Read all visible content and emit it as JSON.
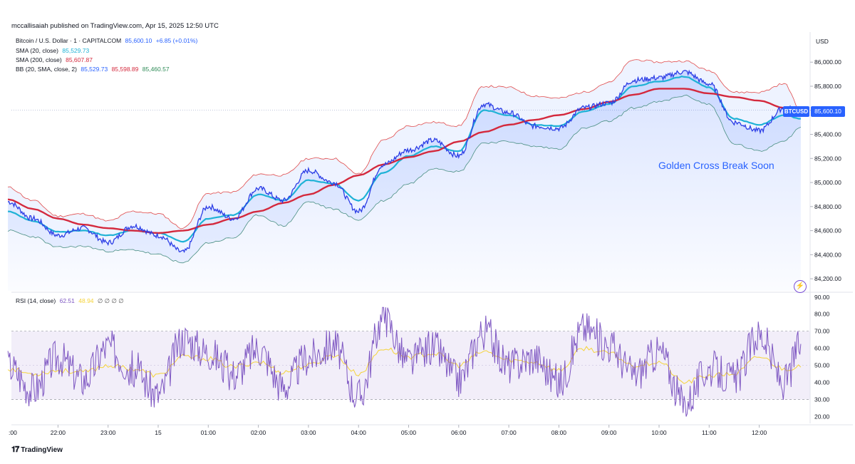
{
  "header": {
    "published": "mccallisaiah published on TradingView.com, Apr 15, 2025 12:50 UTC"
  },
  "legend": {
    "symbol": "Bitcoin / U.S. Dollar · 1 · CAPITALCOM",
    "price": "85,600.10",
    "change": "+6.85 (+0.01%)",
    "sma20_label": "SMA (20, close)",
    "sma20_value": "85,529.73",
    "sma200_label": "SMA (200, close)",
    "sma200_value": "85,607.87",
    "bb_label": "BB (20, SMA, close, 2)",
    "bb_basis": "85,529.73",
    "bb_upper": "85,598.89",
    "bb_lower": "85,460.57",
    "rsi_label": "RSI (14, close)",
    "rsi_value": "62.51",
    "rsi_ma": "48.94",
    "rsi_extra": "∅ ∅ ∅ ∅"
  },
  "currency": "USD",
  "annotation": "Golden Cross Break Soon",
  "price_badge": "85,600.10",
  "symbol_badge": "BTCUSD",
  "brand": "TradingView",
  "icons": {
    "logo": "tradingview-logo-icon",
    "flash": "lightning-icon"
  },
  "colors": {
    "price": "#2c3ee6",
    "sma20": "#1fb2d6",
    "sma200": "#d4293d",
    "bb_upper": "#e04a4a",
    "bb_lower": "#4a8f82",
    "rsi": "#7e57c2",
    "rsi_ma": "#f5d33a",
    "accent": "#2962ff"
  },
  "chart_data": [
    {
      "type": "line",
      "title": "Bitcoin / U.S. Dollar · 1 · CAPITALCOM",
      "x_ticks": [
        "22:00",
        "23:00",
        "15",
        "01:00",
        "02:00",
        "03:00",
        "04:00",
        "05:00",
        "06:00",
        "07:00",
        "08:00",
        "09:00",
        "10:00",
        "11:00",
        "12:00"
      ],
      "ylim": [
        84100,
        86250
      ],
      "y_ticks": [
        "86,000.00",
        "85,800.00",
        "85,600.00",
        "85,400.00",
        "85,200.00",
        "85,000.00",
        "84,800.00",
        "84,600.00",
        "84,400.00",
        "84,200.00"
      ],
      "x_hours": [
        -3.0,
        -2.5,
        -2.0,
        -1.5,
        -1.0,
        -0.5,
        0.0,
        0.5,
        1.0,
        1.5,
        2.0,
        2.5,
        3.0,
        3.5,
        4.0,
        4.5,
        5.0,
        5.5,
        6.0,
        6.5,
        7.0,
        7.5,
        8.0,
        8.5,
        9.0,
        9.5,
        10.0,
        10.5,
        11.0,
        11.5,
        12.0,
        12.5,
        12.83
      ],
      "series": [
        {
          "name": "Price",
          "values": [
            84840,
            84700,
            84560,
            84620,
            84500,
            84640,
            84560,
            84420,
            84800,
            84700,
            84950,
            84850,
            85100,
            85000,
            84760,
            85150,
            85270,
            85350,
            85220,
            85650,
            85580,
            85470,
            85450,
            85620,
            85660,
            85850,
            85870,
            85920,
            85820,
            85500,
            85430,
            85620,
            85600
          ]
        },
        {
          "name": "SMA (20, close)",
          "values": [
            84760,
            84680,
            84590,
            84600,
            84560,
            84600,
            84580,
            84510,
            84700,
            84730,
            84900,
            84850,
            85020,
            84990,
            84850,
            85080,
            85220,
            85300,
            85260,
            85600,
            85560,
            85480,
            85470,
            85590,
            85650,
            85800,
            85840,
            85880,
            85790,
            85530,
            85480,
            85560,
            85530
          ]
        },
        {
          "name": "SMA (200, close)",
          "values": [
            84860,
            84780,
            84700,
            84650,
            84620,
            84600,
            84580,
            84600,
            84650,
            84700,
            84760,
            84830,
            84900,
            84980,
            85060,
            85150,
            85210,
            85260,
            85340,
            85420,
            85480,
            85520,
            85560,
            85610,
            85670,
            85730,
            85780,
            85780,
            85740,
            85710,
            85680,
            85620,
            85610
          ]
        }
      ],
      "bands": {
        "upper": [
          84960,
          84850,
          84720,
          84740,
          84680,
          84760,
          84740,
          84620,
          84910,
          84920,
          85070,
          85060,
          85200,
          85200,
          85070,
          85350,
          85470,
          85500,
          85470,
          85800,
          85790,
          85720,
          85700,
          85750,
          85830,
          86020,
          86000,
          86010,
          85930,
          85750,
          85750,
          85820,
          85600
        ],
        "lower": [
          84600,
          84550,
          84460,
          84470,
          84430,
          84440,
          84400,
          84330,
          84500,
          84540,
          84730,
          84640,
          84840,
          84780,
          84690,
          84850,
          84990,
          85120,
          85090,
          85330,
          85340,
          85300,
          85280,
          85450,
          85510,
          85620,
          85670,
          85720,
          85650,
          85320,
          85260,
          85350,
          85460
        ]
      }
    },
    {
      "type": "line",
      "title": "RSI (14, close)",
      "ylim": [
        16,
        92
      ],
      "y_ticks": [
        "90.00",
        "80.00",
        "70.00",
        "60.00",
        "50.00",
        "40.00",
        "30.00",
        "20.00"
      ],
      "band": [
        30,
        70
      ],
      "x_hours": [
        -3.0,
        -2.5,
        -2.0,
        -1.5,
        -1.0,
        -0.5,
        0.0,
        0.5,
        1.0,
        1.5,
        2.0,
        2.5,
        3.0,
        3.5,
        4.0,
        4.5,
        5.0,
        5.5,
        6.0,
        6.5,
        7.0,
        7.5,
        8.0,
        8.5,
        9.0,
        9.5,
        10.0,
        10.5,
        11.0,
        11.5,
        12.0,
        12.5,
        12.83
      ],
      "series": [
        {
          "name": "RSI",
          "values": [
            50,
            36,
            55,
            42,
            61,
            48,
            33,
            66,
            58,
            45,
            60,
            38,
            55,
            62,
            32,
            78,
            52,
            60,
            42,
            70,
            50,
            55,
            40,
            72,
            62,
            45,
            58,
            28,
            48,
            42,
            68,
            40,
            62.51
          ]
        },
        {
          "name": "RSI MA",
          "values": [
            48,
            45,
            47,
            46,
            50,
            48,
            44,
            55,
            54,
            49,
            52,
            46,
            50,
            56,
            45,
            60,
            55,
            57,
            50,
            58,
            53,
            52,
            47,
            60,
            57,
            50,
            52,
            40,
            44,
            45,
            55,
            48,
            48.94
          ]
        }
      ]
    }
  ]
}
